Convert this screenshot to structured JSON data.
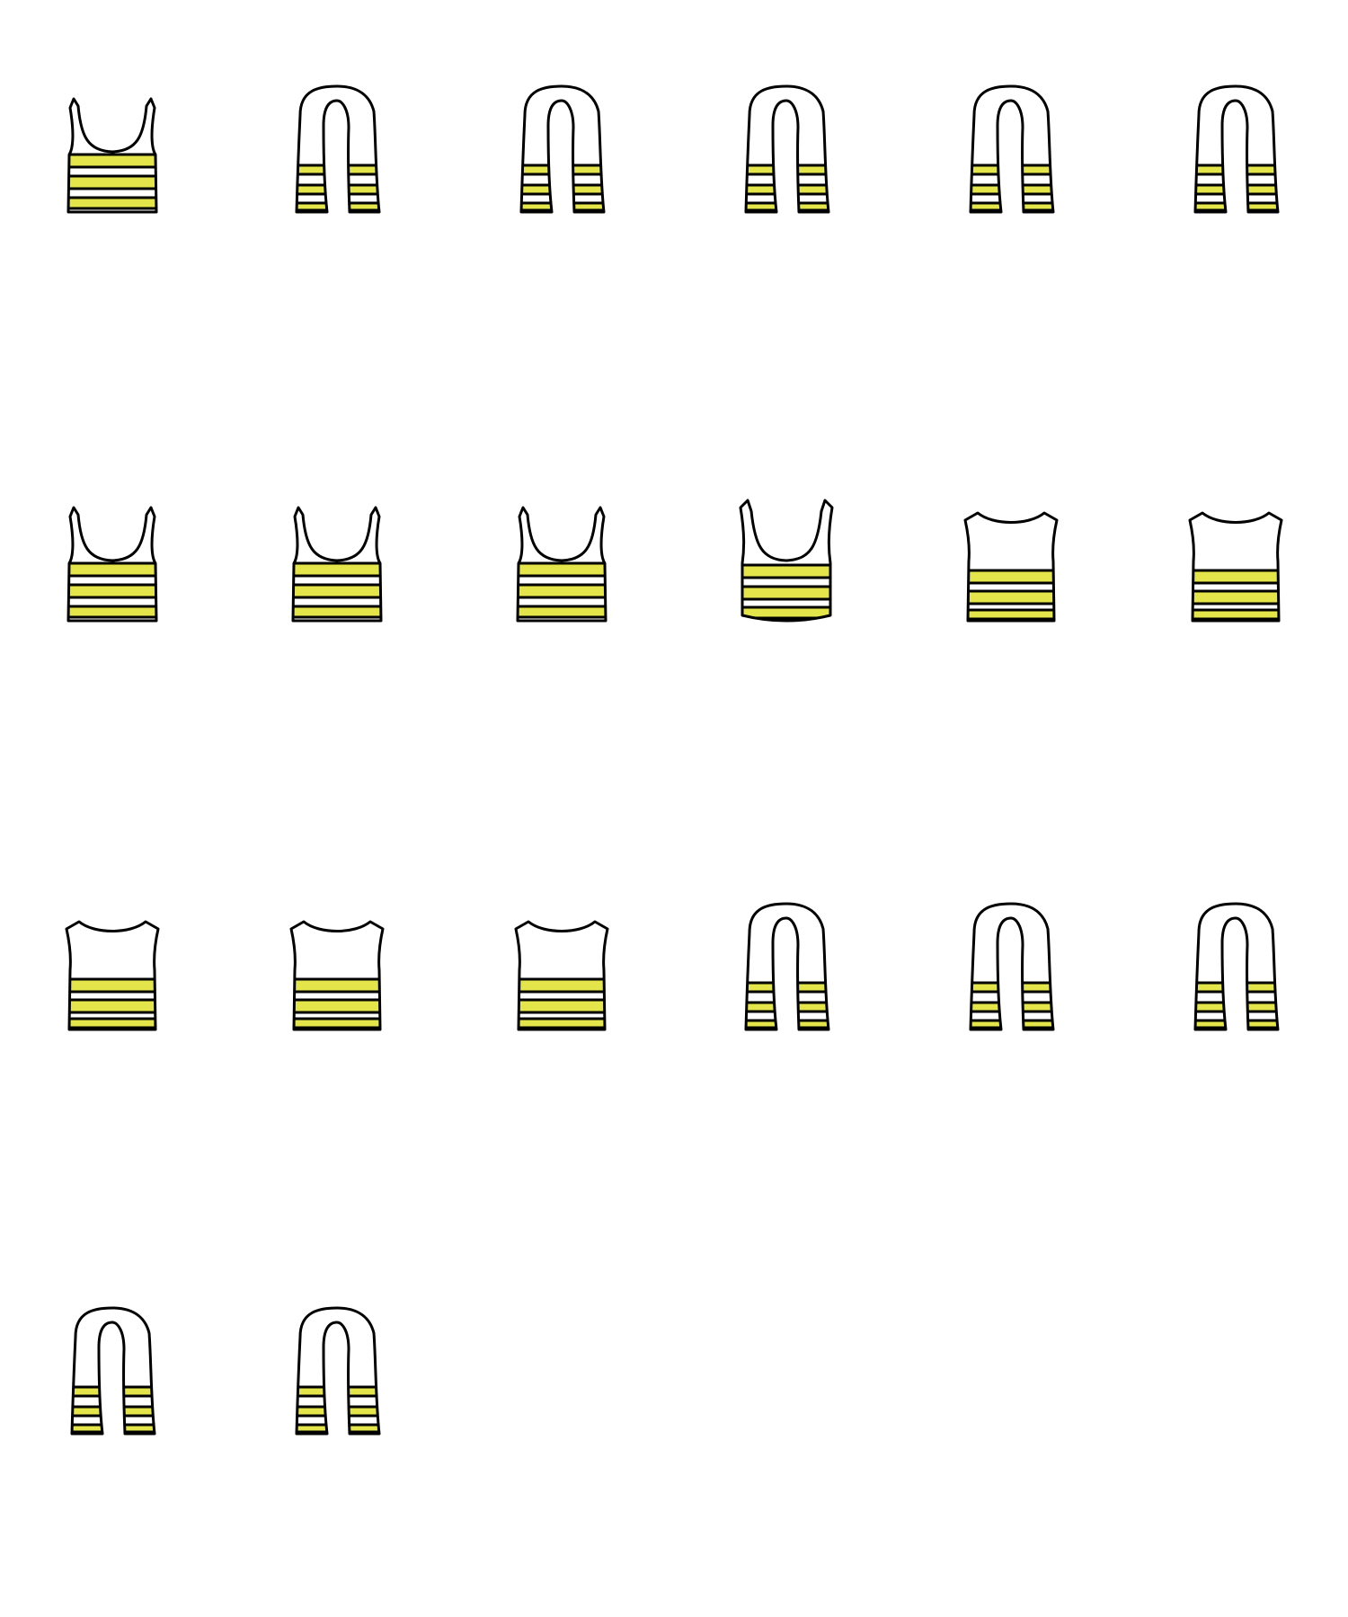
{
  "sheet": {
    "name": "striped-crop-top-animation-sheet",
    "background": "#ffffff",
    "outline_color": "#000000",
    "fill_color": "#ffffff",
    "stripe_color": "#e3e54a",
    "frame_count": 20
  },
  "frames": [
    {
      "pose": "front-scoop",
      "stripes": 3
    },
    {
      "pose": "side",
      "stripes": 3
    },
    {
      "pose": "side",
      "stripes": 3
    },
    {
      "pose": "side",
      "stripes": 3
    },
    {
      "pose": "side",
      "stripes": 3
    },
    {
      "pose": "side",
      "stripes": 3
    },
    {
      "pose": "front-scoop",
      "stripes": 3
    },
    {
      "pose": "front-scoop",
      "stripes": 3
    },
    {
      "pose": "front-scoop",
      "stripes": 3
    },
    {
      "pose": "front-scoop-curved",
      "stripes": 3
    },
    {
      "pose": "back-crew",
      "stripes": 3
    },
    {
      "pose": "back-crew",
      "stripes": 3
    },
    {
      "pose": "back-crew",
      "stripes": 3
    },
    {
      "pose": "back-crew",
      "stripes": 3
    },
    {
      "pose": "back-crew",
      "stripes": 3
    },
    {
      "pose": "side",
      "stripes": 3
    },
    {
      "pose": "side",
      "stripes": 3
    },
    {
      "pose": "side",
      "stripes": 3
    },
    {
      "pose": "side",
      "stripes": 3
    },
    {
      "pose": "side",
      "stripes": 3
    }
  ]
}
